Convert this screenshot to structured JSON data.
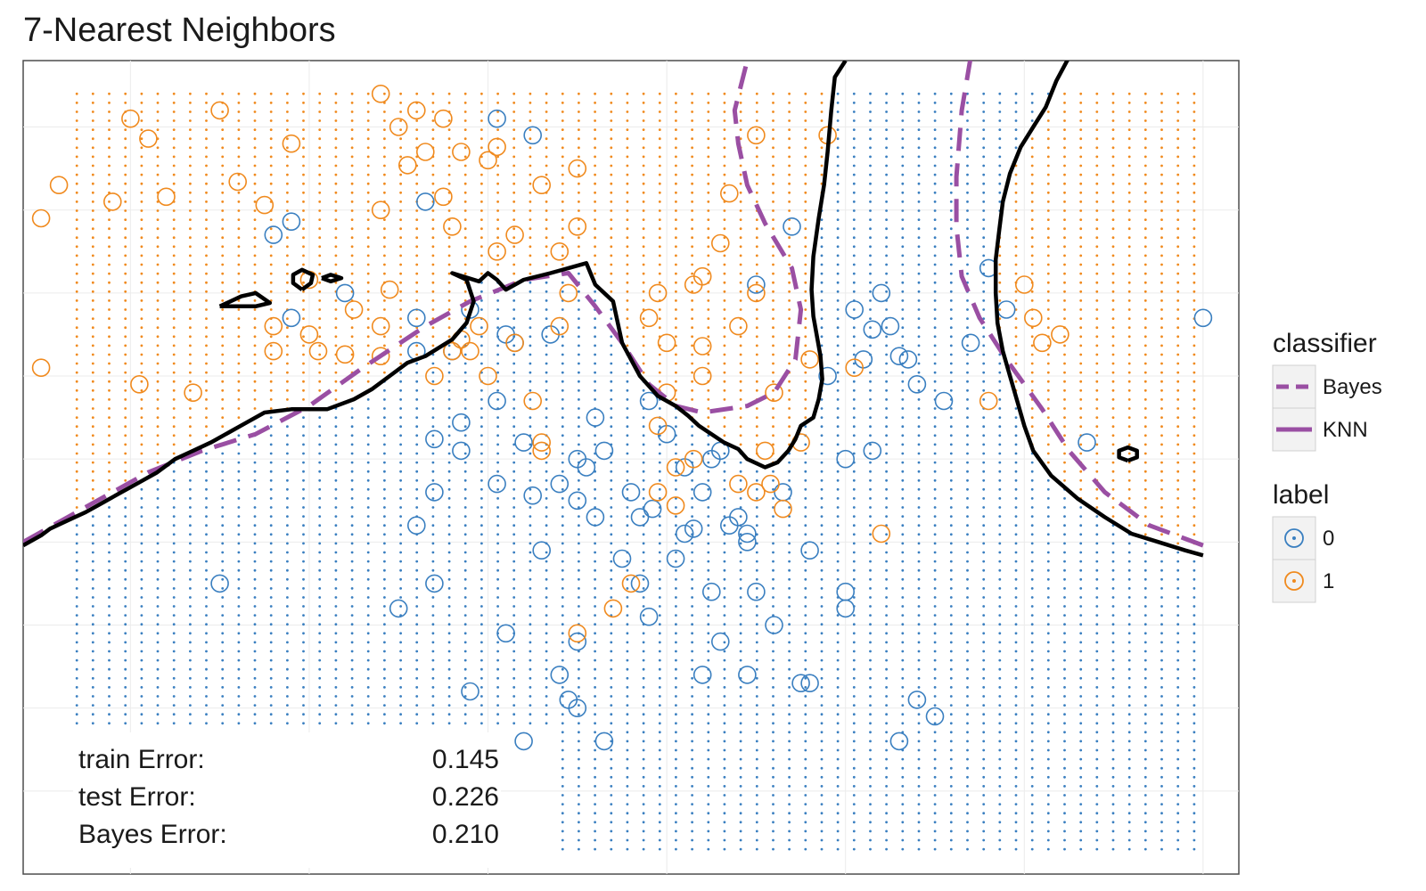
{
  "chart_data": {
    "type": "scatter",
    "title": "7-Nearest Neighbors",
    "xlabel": "",
    "ylabel": "",
    "xlim": [
      -2.6,
      4.2
    ],
    "ylim": [
      -2.0,
      2.9
    ],
    "grid": true,
    "legend_position": "right",
    "colors": {
      "label_0": "#3a7fc0",
      "label_1": "#f08a1e",
      "bayes": "#9a4fa3",
      "knn": "#000000",
      "knn_legend": "#9a4fa3"
    },
    "legend": {
      "classifier": {
        "title": "classifier",
        "entries": [
          "Bayes",
          "KNN"
        ]
      },
      "label": {
        "title": "label",
        "entries": [
          "0",
          "1"
        ]
      }
    },
    "errors": [
      {
        "label": "train Error:",
        "value": "0.145"
      },
      {
        "label": "test Error:",
        "value": "0.226"
      },
      {
        "label": "Bayes Error:",
        "value": "0.210"
      }
    ],
    "bayes_boundary": [
      [
        [
          -2.6,
          0.0
        ],
        [
          -2.2,
          0.24
        ],
        [
          -1.9,
          0.42
        ],
        [
          -1.6,
          0.55
        ],
        [
          -1.3,
          0.65
        ],
        [
          -1.0,
          0.82
        ],
        [
          -0.7,
          1.05
        ],
        [
          -0.35,
          1.3
        ],
        [
          -0.1,
          1.45
        ],
        [
          0.2,
          1.58
        ],
        [
          0.45,
          1.62
        ],
        [
          0.6,
          1.42
        ],
        [
          0.75,
          1.2
        ],
        [
          0.9,
          0.95
        ],
        [
          1.05,
          0.82
        ],
        [
          1.2,
          0.78
        ],
        [
          1.45,
          0.82
        ],
        [
          1.6,
          0.9
        ],
        [
          1.72,
          1.1
        ],
        [
          1.75,
          1.4
        ],
        [
          1.7,
          1.65
        ],
        [
          1.55,
          1.92
        ],
        [
          1.45,
          2.15
        ],
        [
          1.4,
          2.4
        ],
        [
          1.38,
          2.6
        ],
        [
          1.45,
          2.9
        ]
      ],
      [
        [
          2.7,
          2.92
        ],
        [
          2.65,
          2.6
        ],
        [
          2.62,
          2.2
        ],
        [
          2.62,
          1.9
        ],
        [
          2.65,
          1.6
        ],
        [
          2.75,
          1.35
        ],
        [
          2.9,
          1.1
        ],
        [
          3.1,
          0.8
        ],
        [
          3.25,
          0.55
        ],
        [
          3.45,
          0.3
        ],
        [
          3.7,
          0.1
        ],
        [
          3.9,
          0.02
        ],
        [
          4.0,
          -0.02
        ]
      ]
    ],
    "knn_boundary": [
      [
        [
          -2.6,
          -0.02
        ],
        [
          -2.5,
          0.04
        ],
        [
          -2.45,
          0.08
        ],
        [
          -2.35,
          0.13
        ],
        [
          -2.25,
          0.18
        ],
        [
          -2.15,
          0.24
        ],
        [
          -2.05,
          0.3
        ],
        [
          -1.95,
          0.36
        ],
        [
          -1.85,
          0.42
        ],
        [
          -1.75,
          0.5
        ],
        [
          -1.65,
          0.55
        ],
        [
          -1.55,
          0.6
        ],
        [
          -1.45,
          0.66
        ],
        [
          -1.35,
          0.72
        ],
        [
          -1.25,
          0.78
        ],
        [
          -1.1,
          0.8
        ],
        [
          -0.9,
          0.8
        ],
        [
          -0.75,
          0.86
        ],
        [
          -0.65,
          0.92
        ],
        [
          -0.55,
          1.0
        ],
        [
          -0.45,
          1.08
        ],
        [
          -0.35,
          1.12
        ],
        [
          -0.2,
          1.22
        ],
        [
          -0.12,
          1.32
        ],
        [
          -0.08,
          1.45
        ],
        [
          -0.12,
          1.58
        ],
        [
          -0.2,
          1.62
        ],
        [
          -0.05,
          1.57
        ],
        [
          0.0,
          1.62
        ],
        [
          0.05,
          1.58
        ],
        [
          0.1,
          1.52
        ],
        [
          0.2,
          1.58
        ],
        [
          0.35,
          1.62
        ],
        [
          0.45,
          1.65
        ],
        [
          0.55,
          1.68
        ],
        [
          0.6,
          1.55
        ],
        [
          0.7,
          1.45
        ],
        [
          0.75,
          1.2
        ],
        [
          0.85,
          1.0
        ],
        [
          0.95,
          0.88
        ],
        [
          1.05,
          0.82
        ],
        [
          1.12,
          0.76
        ],
        [
          1.18,
          0.7
        ],
        [
          1.25,
          0.65
        ],
        [
          1.32,
          0.6
        ],
        [
          1.4,
          0.56
        ],
        [
          1.45,
          0.5
        ],
        [
          1.55,
          0.45
        ],
        [
          1.62,
          0.48
        ],
        [
          1.68,
          0.55
        ],
        [
          1.72,
          0.62
        ],
        [
          1.75,
          0.7
        ],
        [
          1.82,
          0.75
        ],
        [
          1.85,
          0.86
        ],
        [
          1.87,
          0.98
        ],
        [
          1.86,
          1.12
        ],
        [
          1.84,
          1.24
        ],
        [
          1.82,
          1.36
        ],
        [
          1.81,
          1.52
        ],
        [
          1.82,
          1.72
        ],
        [
          1.85,
          1.95
        ],
        [
          1.88,
          2.15
        ],
        [
          1.9,
          2.35
        ],
        [
          1.92,
          2.6
        ],
        [
          1.94,
          2.8
        ],
        [
          2.0,
          2.9
        ]
      ],
      [
        [
          3.25,
          2.92
        ],
        [
          3.18,
          2.78
        ],
        [
          3.12,
          2.62
        ],
        [
          3.05,
          2.5
        ],
        [
          2.98,
          2.38
        ],
        [
          2.92,
          2.22
        ],
        [
          2.88,
          2.05
        ],
        [
          2.86,
          1.88
        ],
        [
          2.84,
          1.7
        ],
        [
          2.84,
          1.5
        ],
        [
          2.85,
          1.32
        ],
        [
          2.88,
          1.15
        ],
        [
          2.92,
          1.0
        ],
        [
          2.96,
          0.85
        ],
        [
          3.0,
          0.7
        ],
        [
          3.05,
          0.55
        ],
        [
          3.15,
          0.4
        ],
        [
          3.3,
          0.26
        ],
        [
          3.45,
          0.15
        ],
        [
          3.6,
          0.05
        ],
        [
          3.75,
          0.0
        ],
        [
          3.9,
          -0.05
        ],
        [
          4.0,
          -0.08
        ]
      ],
      [
        [
          -1.5,
          1.42
        ],
        [
          -1.38,
          1.48
        ],
        [
          -1.3,
          1.5
        ],
        [
          -1.22,
          1.44
        ],
        [
          -1.3,
          1.42
        ],
        [
          -1.5,
          1.42
        ]
      ],
      [
        [
          -1.04,
          1.52
        ],
        [
          -0.99,
          1.56
        ],
        [
          -0.98,
          1.61
        ],
        [
          -1.04,
          1.64
        ],
        [
          -1.09,
          1.61
        ],
        [
          -1.09,
          1.56
        ],
        [
          -1.04,
          1.52
        ]
      ],
      [
        [
          -0.93,
          1.59
        ],
        [
          -0.88,
          1.61
        ],
        [
          -0.82,
          1.59
        ],
        [
          -0.88,
          1.57
        ],
        [
          -0.93,
          1.59
        ]
      ],
      [
        [
          3.58,
          0.49
        ],
        [
          3.63,
          0.51
        ],
        [
          3.63,
          0.55
        ],
        [
          3.58,
          0.57
        ],
        [
          3.53,
          0.55
        ],
        [
          3.53,
          0.51
        ],
        [
          3.58,
          0.49
        ]
      ]
    ],
    "points": {
      "label_0": [
        [
          -1.1,
          1.93
        ],
        [
          -0.8,
          1.5
        ],
        [
          -1.1,
          1.35
        ],
        [
          -0.4,
          1.35
        ],
        [
          -0.2,
          1.15
        ],
        [
          -0.4,
          1.15
        ],
        [
          -0.1,
          1.4
        ],
        [
          0.1,
          1.25
        ],
        [
          0.15,
          1.2
        ],
        [
          0.35,
          1.25
        ],
        [
          0.05,
          0.85
        ],
        [
          0.2,
          0.6
        ],
        [
          0.6,
          0.75
        ],
        [
          0.9,
          0.85
        ],
        [
          1.0,
          0.65
        ],
        [
          1.1,
          0.45
        ],
        [
          0.5,
          0.5
        ],
        [
          0.65,
          0.55
        ],
        [
          0.55,
          0.45
        ],
        [
          0.8,
          0.3
        ],
        [
          1.2,
          0.3
        ],
        [
          1.35,
          0.1
        ],
        [
          1.45,
          0.0
        ],
        [
          1.65,
          0.3
        ],
        [
          1.8,
          -0.05
        ],
        [
          2.0,
          0.5
        ],
        [
          1.9,
          1.0
        ],
        [
          2.3,
          1.12
        ],
        [
          2.4,
          0.95
        ],
        [
          2.55,
          0.85
        ],
        [
          2.7,
          1.2
        ],
        [
          2.05,
          1.4
        ],
        [
          2.15,
          1.28
        ],
        [
          2.2,
          1.5
        ],
        [
          2.9,
          1.4
        ],
        [
          0.25,
          2.45
        ],
        [
          0.05,
          2.55
        ],
        [
          1.7,
          1.9
        ],
        [
          1.5,
          1.55
        ],
        [
          2.1,
          1.1
        ],
        [
          2.15,
          0.55
        ],
        [
          -0.4,
          0.1
        ],
        [
          0.3,
          -0.05
        ],
        [
          0.75,
          -0.1
        ],
        [
          1.05,
          -0.1
        ],
        [
          1.25,
          -0.3
        ],
        [
          1.5,
          -0.3
        ],
        [
          2.0,
          -0.3
        ],
        [
          1.6,
          -0.5
        ],
        [
          0.5,
          -0.6
        ],
        [
          0.1,
          -0.55
        ],
        [
          -0.5,
          -0.4
        ],
        [
          -0.3,
          0.3
        ],
        [
          0.05,
          0.35
        ],
        [
          -0.3,
          -0.25
        ],
        [
          0.85,
          -0.25
        ],
        [
          0.9,
          -0.45
        ],
        [
          1.3,
          -0.6
        ],
        [
          1.8,
          -0.85
        ],
        [
          0.4,
          -0.8
        ],
        [
          0.45,
          -0.95
        ],
        [
          1.75,
          -0.85
        ],
        [
          2.4,
          -0.95
        ],
        [
          2.5,
          -1.05
        ],
        [
          2.3,
          -1.2
        ],
        [
          1.45,
          -0.8
        ],
        [
          1.2,
          -0.8
        ],
        [
          0.5,
          -1.0
        ],
        [
          -0.1,
          -0.9
        ],
        [
          0.65,
          -1.2
        ],
        [
          0.2,
          -1.2
        ],
        [
          -1.5,
          -0.25
        ],
        [
          -1.2,
          1.85
        ],
        [
          -0.35,
          2.05
        ],
        [
          3.35,
          0.6
        ],
        [
          0.25,
          0.28
        ],
        [
          -0.15,
          0.72
        ],
        [
          1.4,
          0.15
        ],
        [
          -0.3,
          0.62
        ],
        [
          -0.15,
          0.55
        ],
        [
          0.4,
          0.35
        ],
        [
          0.6,
          0.15
        ],
        [
          0.85,
          0.15
        ],
        [
          0.92,
          0.2
        ],
        [
          1.25,
          0.5
        ],
        [
          1.3,
          0.55
        ],
        [
          1.45,
          0.05
        ],
        [
          1.15,
          0.08
        ],
        [
          2.0,
          -0.4
        ],
        [
          1.1,
          0.05
        ],
        [
          2.25,
          1.3
        ],
        [
          2.35,
          1.1
        ],
        [
          2.8,
          1.65
        ],
        [
          4.0,
          1.35
        ],
        [
          0.5,
          0.25
        ]
      ],
      "label_1": [
        [
          -0.6,
          2.7
        ],
        [
          -0.4,
          2.6
        ],
        [
          -1.5,
          2.6
        ],
        [
          -2.0,
          2.55
        ],
        [
          -1.9,
          2.43
        ],
        [
          -1.1,
          2.4
        ],
        [
          -2.4,
          2.15
        ],
        [
          -2.1,
          2.05
        ],
        [
          -2.5,
          1.95
        ],
        [
          -1.8,
          2.08
        ],
        [
          -1.4,
          2.17
        ],
        [
          -1.25,
          2.03
        ],
        [
          -0.6,
          2.0
        ],
        [
          -0.45,
          2.27
        ],
        [
          -0.35,
          2.35
        ],
        [
          -0.15,
          2.35
        ],
        [
          0.0,
          2.3
        ],
        [
          0.05,
          2.38
        ],
        [
          0.3,
          2.15
        ],
        [
          0.5,
          2.25
        ],
        [
          -0.25,
          2.55
        ],
        [
          -0.5,
          2.5
        ],
        [
          -0.25,
          2.08
        ],
        [
          -0.2,
          1.9
        ],
        [
          -0.55,
          1.52
        ],
        [
          -0.6,
          1.3
        ],
        [
          -0.75,
          1.4
        ],
        [
          -1.0,
          1.58
        ],
        [
          -1.2,
          1.3
        ],
        [
          -0.6,
          1.12
        ],
        [
          -0.8,
          1.13
        ],
        [
          -0.95,
          1.15
        ],
        [
          -1.0,
          1.25
        ],
        [
          -1.2,
          1.15
        ],
        [
          -2.5,
          1.05
        ],
        [
          -1.95,
          0.95
        ],
        [
          -1.65,
          0.9
        ],
        [
          -0.05,
          1.3
        ],
        [
          0.15,
          1.2
        ],
        [
          0.4,
          1.3
        ],
        [
          0.45,
          1.5
        ],
        [
          0.9,
          1.35
        ],
        [
          0.95,
          1.5
        ],
        [
          1.15,
          1.55
        ],
        [
          1.5,
          1.5
        ],
        [
          1.2,
          1.18
        ],
        [
          1.2,
          1.0
        ],
        [
          0.95,
          0.7
        ],
        [
          1.05,
          0.45
        ],
        [
          1.15,
          0.5
        ],
        [
          1.4,
          0.35
        ],
        [
          1.55,
          0.55
        ],
        [
          1.75,
          0.6
        ],
        [
          1.6,
          0.9
        ],
        [
          1.8,
          1.1
        ],
        [
          0.4,
          1.75
        ],
        [
          0.5,
          1.9
        ],
        [
          0.15,
          1.85
        ],
        [
          0.05,
          1.75
        ],
        [
          1.3,
          1.8
        ],
        [
          1.2,
          1.6
        ],
        [
          1.0,
          1.2
        ],
        [
          1.0,
          0.9
        ],
        [
          0.3,
          0.6
        ],
        [
          0.3,
          0.55
        ],
        [
          0.5,
          -0.55
        ],
        [
          0.7,
          -0.4
        ],
        [
          0.8,
          -0.25
        ],
        [
          1.5,
          2.45
        ],
        [
          2.8,
          0.85
        ],
        [
          3.0,
          1.55
        ],
        [
          3.05,
          1.35
        ],
        [
          3.2,
          1.25
        ],
        [
          3.1,
          1.2
        ],
        [
          1.9,
          2.45
        ],
        [
          1.35,
          2.1
        ],
        [
          -0.2,
          1.15
        ],
        [
          -0.1,
          1.15
        ],
        [
          0.0,
          1.0
        ],
        [
          0.25,
          0.85
        ],
        [
          -0.3,
          1.0
        ],
        [
          -0.15,
          1.22
        ],
        [
          1.58,
          0.35
        ],
        [
          1.5,
          0.3
        ],
        [
          2.2,
          0.05
        ],
        [
          1.4,
          1.3
        ],
        [
          1.65,
          0.2
        ],
        [
          2.05,
          1.05
        ],
        [
          0.95,
          0.3
        ],
        [
          1.05,
          0.22
        ]
      ]
    }
  }
}
